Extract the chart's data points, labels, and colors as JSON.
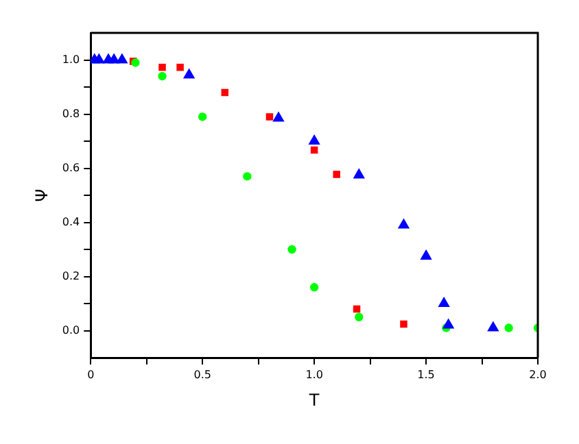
{
  "chart_data": {
    "type": "scatter",
    "xlabel": "T",
    "ylabel": "Ψ",
    "xlim": [
      0,
      2
    ],
    "ylim": [
      -0.1,
      1.1
    ],
    "xticks": [
      0,
      {
        "value": 0.25,
        "label": null
      },
      {
        "value": 0.5,
        "label": "0.5"
      },
      {
        "value": 0.75,
        "label": null
      },
      {
        "value": 1,
        "label": "1.0"
      },
      {
        "value": 1.25,
        "label": null
      },
      {
        "value": 1.5,
        "label": "1.5"
      },
      {
        "value": 1.75,
        "label": null
      },
      {
        "value": 2,
        "label": "2.0"
      }
    ],
    "yticks": [
      {
        "value": 0,
        "label": "0.0"
      },
      {
        "value": 0.1,
        "label": null
      },
      {
        "value": 0.2,
        "label": "0.2"
      },
      {
        "value": 0.3,
        "label": null
      },
      {
        "value": 0.4,
        "label": "0.4"
      },
      {
        "value": 0.5,
        "label": null
      },
      {
        "value": 0.6,
        "label": "0.6"
      },
      {
        "value": 0.7,
        "label": null
      },
      {
        "value": 0.8,
        "label": "0.8"
      },
      {
        "value": 0.9,
        "label": null
      },
      {
        "value": 1,
        "label": "1.0"
      }
    ],
    "grid": false,
    "legend": false,
    "series": [
      {
        "color": "#ff0000",
        "marker": "square",
        "x": [
          0.19,
          0.32,
          0.4,
          0.6,
          0.8,
          1.0,
          1.1,
          1.19,
          1.4
        ],
        "values": [
          0.995,
          0.973,
          0.973,
          0.88,
          0.79,
          0.667,
          0.577,
          0.08,
          0.024
        ]
      },
      {
        "color": "#00ff00",
        "marker": "circle",
        "x": [
          0.2,
          0.32,
          0.5,
          0.7,
          0.9,
          1.0,
          1.2,
          1.59,
          1.87,
          2.0
        ],
        "values": [
          0.99,
          0.94,
          0.79,
          0.57,
          0.3,
          0.16,
          0.05,
          0.01,
          0.01,
          0.01
        ]
      },
      {
        "color": "#0000ff",
        "marker": "triangle",
        "x": [
          0.017,
          0.037,
          0.079,
          0.104,
          0.14,
          0.44,
          0.84,
          1.0,
          1.2,
          1.4,
          1.5,
          1.58,
          1.6,
          1.8
        ],
        "values": [
          1.0,
          1.0,
          1.0,
          1.0,
          1.0,
          0.944,
          0.785,
          0.7,
          0.575,
          0.39,
          0.275,
          0.1,
          0.02,
          0.01
        ]
      }
    ]
  }
}
